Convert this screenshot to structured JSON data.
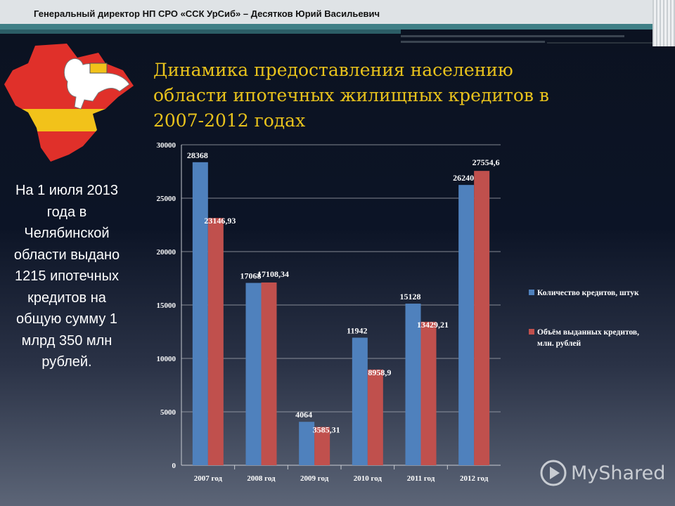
{
  "header": {
    "text": "Генеральный директор НП СРО «ССК УрСиб» – Десятков Юрий Васильевич"
  },
  "title": {
    "line1": "Динамика предоставления населению",
    "line2": "области ипотечных жилищных кредитов в",
    "line3": "2007-2012 годах"
  },
  "side_text": "На 1 июля 2013 года в Челябинской области выдано 1215 ипотечных кредитов на общую сумму 1 млрд 350 млн рублей.",
  "watermark": {
    "text": "MyShared",
    "icon": "play-icon"
  },
  "emblem": {
    "icon": "chelyabinsk-region-emblem-icon"
  },
  "colors": {
    "accent": "#e8c21c",
    "series1": "#4f81bd",
    "series2": "#c0504d",
    "teal": "#3f7f86"
  },
  "chart_data": {
    "type": "bar",
    "categories": [
      "2007 год",
      "2008 год",
      "2009 год",
      "2010 год",
      "2011 год",
      "2012 год"
    ],
    "series": [
      {
        "name": "Количество кредитов, штук",
        "values": [
          28368,
          17068,
          4064,
          11942,
          15128,
          26240
        ],
        "labels": [
          "28368",
          "17068",
          "4064",
          "11942",
          "15128",
          "26240"
        ]
      },
      {
        "name": "Объём выданных кредитов, млн. рублей",
        "values": [
          23146.93,
          17108.34,
          3585.31,
          8958.9,
          13429.21,
          27554.6
        ],
        "labels": [
          "23146,93",
          "17108,34",
          "3585,31",
          "8958,9",
          "13429,21",
          "27554,6"
        ]
      }
    ],
    "ylim": [
      0,
      30000
    ],
    "yticks": [
      0,
      5000,
      10000,
      15000,
      20000,
      25000,
      30000
    ],
    "ytick_labels": [
      "0",
      "5000",
      "10000",
      "15000",
      "20000",
      "25000",
      "30000"
    ],
    "grid": true,
    "legend_position": "right"
  }
}
